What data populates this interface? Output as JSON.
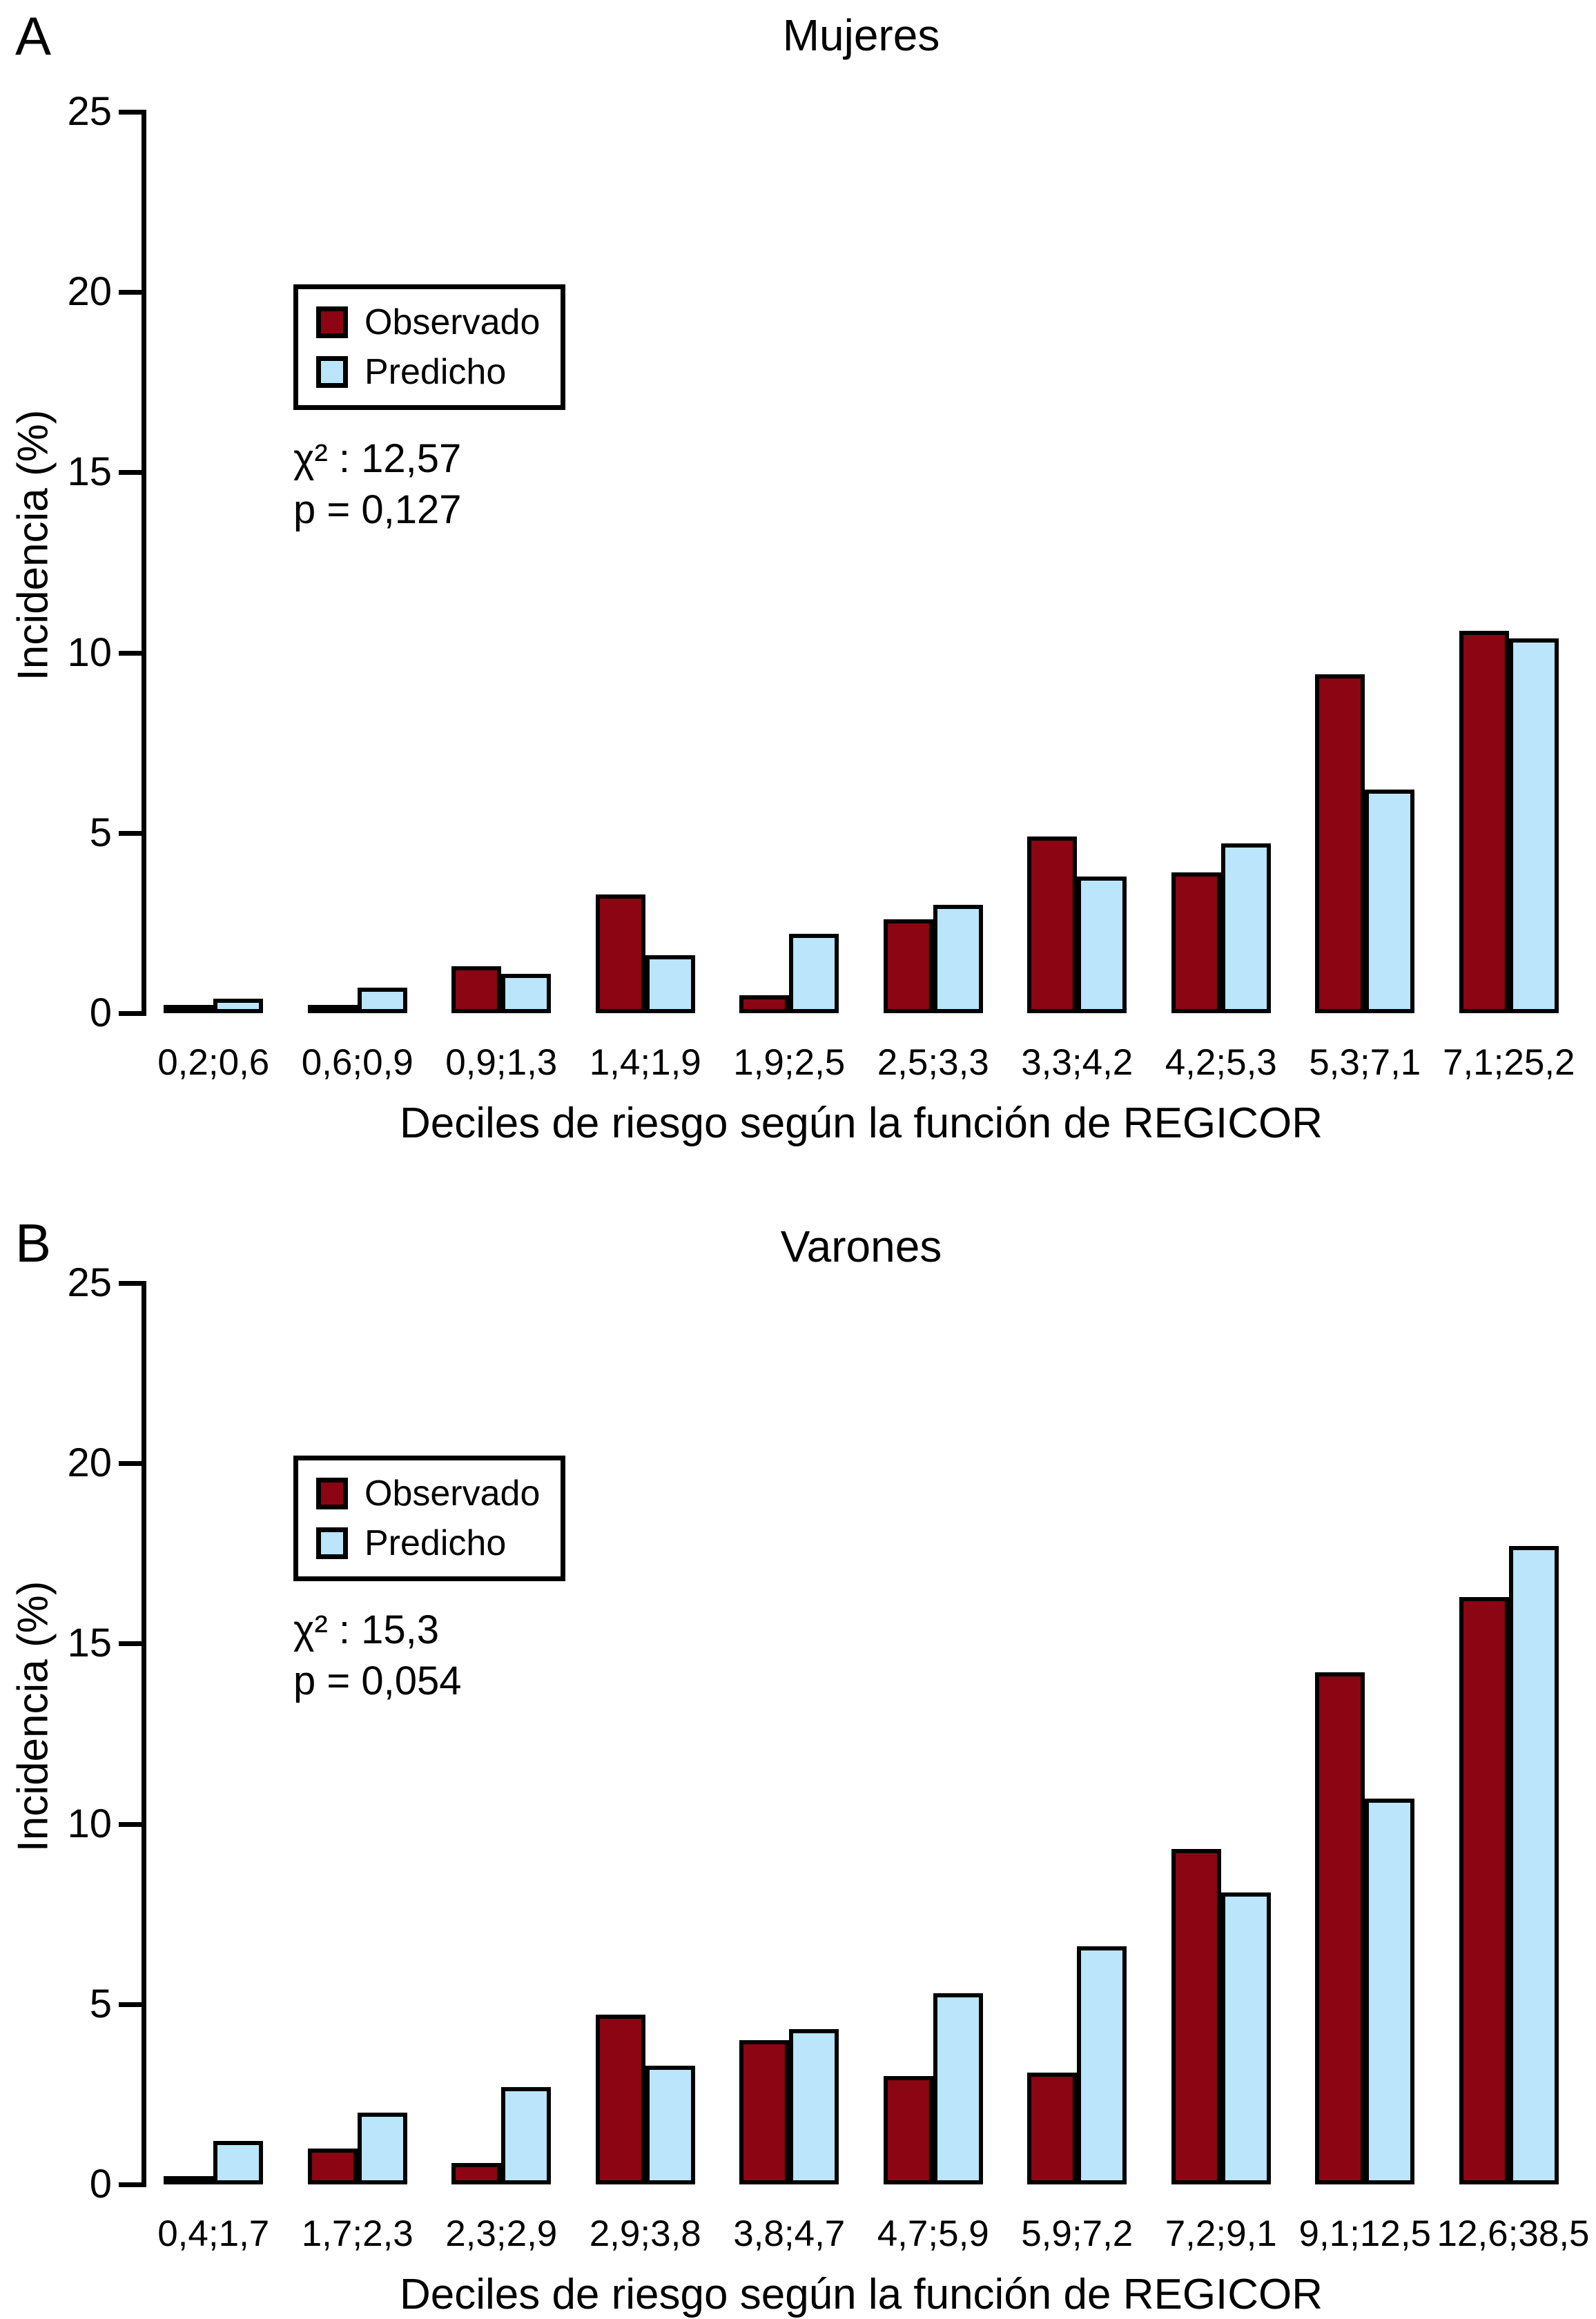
{
  "colors": {
    "observado": "#8b0513",
    "predicho": "#bae5fa",
    "outline": "#000000",
    "background": "#ffffff"
  },
  "legend": {
    "observado": "Observado",
    "predicho": "Predicho"
  },
  "y_axis": {
    "label": "Incidencia (%)",
    "ticks": [
      25,
      20,
      15,
      10,
      5,
      0
    ],
    "max": 25
  },
  "chart_data": [
    {
      "id": "A",
      "type": "bar",
      "panel_label": "A",
      "title": "Mujeres",
      "chi2": "χ² : 12,57",
      "p": "p = 0,127",
      "xlabel": "Deciles de riesgo según la función de REGICOR",
      "ylabel": "Incidencia (%)",
      "ylim": [
        0,
        25
      ],
      "grid": false,
      "legend_position": "upper-left",
      "categories": [
        "0,2;0,6",
        "0,6;0,9",
        "0,9;1,3",
        "1,4;1,9",
        "1,9;2,5",
        "2,5;3,3",
        "3,3;4,2",
        "4,2;5,3",
        "5,3;7,1",
        "7,1;25,2"
      ],
      "series": [
        {
          "name": "Observado",
          "values": [
            0.1,
            0.1,
            1.3,
            3.3,
            0.5,
            2.6,
            4.9,
            3.9,
            9.4,
            10.6
          ]
        },
        {
          "name": "Predicho",
          "values": [
            0.4,
            0.7,
            1.1,
            1.6,
            2.2,
            3.0,
            3.8,
            4.7,
            6.2,
            10.4
          ]
        }
      ]
    },
    {
      "id": "B",
      "type": "bar",
      "panel_label": "B",
      "title": "Varones",
      "chi2": "χ² : 15,3",
      "p": "p = 0,054",
      "xlabel": "Deciles de riesgo según la función de REGICOR",
      "ylabel": "Incidencia (%)",
      "ylim": [
        0,
        25
      ],
      "grid": false,
      "legend_position": "upper-left",
      "categories": [
        "0,4;1,7",
        "1,7;2,3",
        "2,3;2,9",
        "2,9;3,8",
        "3,8;4,7",
        "4,7;5,9",
        "5,9;7,2",
        "7,2;9,1",
        "9,1;12,5",
        "12,6;38,5"
      ],
      "series": [
        {
          "name": "Observado",
          "values": [
            0.1,
            1.0,
            0.6,
            4.7,
            4.0,
            3.0,
            3.1,
            9.3,
            14.2,
            16.3
          ]
        },
        {
          "name": "Predicho",
          "values": [
            1.2,
            2.0,
            2.7,
            3.3,
            4.3,
            5.3,
            6.6,
            8.1,
            10.7,
            17.7
          ]
        }
      ]
    }
  ]
}
